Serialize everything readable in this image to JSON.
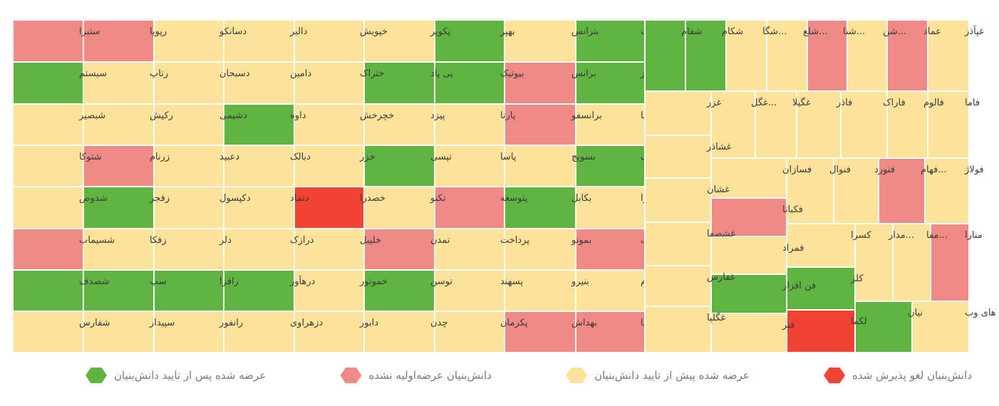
{
  "colors": {
    "green": "#5fb442",
    "pink": "#f08a87",
    "yellow": "#fde29a",
    "red": "#f14234",
    "border": "#ffffff"
  },
  "legend": [
    {
      "label": "عرضه شده پس از تایید دانش‌بنیان",
      "color": "green"
    },
    {
      "label": "دانش‌بنیان عرضه‌اولیه نشده",
      "color": "pink"
    },
    {
      "label": "عرضه شده پیش از تایید دانش‌بنیان",
      "color": "yellow"
    },
    {
      "label": "دانش‌بنیان لغو پذیرش شده",
      "color": "red"
    }
  ],
  "chart_data": {
    "type": "treemap",
    "grid_columns_rtl": [
      [
        "آپ",
        "اپرداز",
        "آریا",
        "اسیاتک",
        "افرا",
        "آواک",
        "بازرگام",
        "بپویا"
      ],
      [
        "بترانس",
        "برانس",
        "برانسفو",
        "بسویچ",
        "بکابل",
        "بموتو",
        "بنیرو",
        "بهداش"
      ],
      [
        "بهپر",
        "بیوتیک",
        "پارتا",
        "پاسا",
        "پتوسعه",
        "پرداخت",
        "پسهند",
        "پکرمان"
      ],
      [
        "پکویر",
        "پی پاد",
        "پیزد",
        "تپسی",
        "تکنو",
        "تمدن",
        "توسن",
        "چدن"
      ],
      [
        "خپویش",
        "ختراک",
        "خچرخش",
        "خزر",
        "خصدرا",
        "خلیبل",
        "خموتور",
        "دابور"
      ],
      [
        "دالبر",
        "دامین",
        "داوه",
        "دبالک",
        "دتماد",
        "درازک",
        "درهآور",
        "دزهراوی"
      ],
      [
        "دسانکو",
        "دسبحان",
        "دشیمی",
        "دعبید",
        "دکپسول",
        "دلر",
        "رافزا",
        "رانفور"
      ],
      [
        "رپویا",
        "رتاپ",
        "رکیش",
        "زرنام",
        "زفجر",
        "زفکا",
        "سپ",
        "سپیدار"
      ],
      [
        "ستبرا",
        "سیستم",
        "شبصیر",
        "شتوکا",
        "شدوص",
        "شسیماب",
        "شصدف",
        "شفارس"
      ]
    ],
    "grid_statuses_rtl": [
      [
        "green",
        "green",
        "yellow",
        "green",
        "yellow",
        "pink",
        "yellow",
        "pink"
      ],
      [
        "yellow",
        "pink",
        "pink",
        "yellow",
        "green",
        "yellow",
        "yellow",
        "pink"
      ],
      [
        "green",
        "green",
        "yellow",
        "yellow",
        "pink",
        "yellow",
        "yellow",
        "yellow"
      ],
      [
        "yellow",
        "green",
        "yellow",
        "green",
        "yellow",
        "pink",
        "green",
        "yellow"
      ],
      [
        "yellow",
        "yellow",
        "yellow",
        "yellow",
        "red",
        "yellow",
        "yellow",
        "yellow"
      ],
      [
        "yellow",
        "yellow",
        "green",
        "yellow",
        "yellow",
        "yellow",
        "green",
        "yellow"
      ],
      [
        "yellow",
        "yellow",
        "yellow",
        "yellow",
        "yellow",
        "yellow",
        "green",
        "yellow"
      ],
      [
        "pink",
        "yellow",
        "yellow",
        "pink",
        "green",
        "yellow",
        "green",
        "yellow"
      ],
      [
        "pink",
        "green",
        "yellow",
        "yellow",
        "yellow",
        "pink",
        "green",
        "yellow"
      ]
    ],
    "right_cells": [
      {
        "label": "غپآذر",
        "status": "yellow"
      },
      {
        "label": "عماد",
        "status": "pink"
      },
      {
        "label": "...شن",
        "status": "yellow"
      },
      {
        "label": "...شنا",
        "status": "pink"
      },
      {
        "label": "...شلع",
        "status": "yellow"
      },
      {
        "label": "...شگا",
        "status": "yellow"
      },
      {
        "label": "شکام",
        "status": "green"
      },
      {
        "label": "شفام",
        "status": "green"
      },
      {
        "label": "فاما",
        "status": "yellow"
      },
      {
        "label": "فالوم",
        "status": "yellow"
      },
      {
        "label": "فاراک",
        "status": "yellow"
      },
      {
        "label": "فاذر",
        "status": "yellow"
      },
      {
        "label": "غگیلا",
        "status": "yellow"
      },
      {
        "label": "...غگل",
        "status": "yellow"
      },
      {
        "label": "غزر",
        "status": "yellow"
      },
      {
        "label": "فولاژ",
        "status": "yellow"
      },
      {
        "label": "...فهام",
        "status": "pink"
      },
      {
        "label": "فنورد",
        "status": "yellow"
      },
      {
        "label": "فنوال",
        "status": "yellow"
      },
      {
        "label": "فسازان",
        "status": "yellow"
      },
      {
        "label": "غشاذر",
        "status": "yellow"
      },
      {
        "label": "غشان",
        "status": "yellow"
      },
      {
        "label": "فکباتا",
        "status": "pink"
      },
      {
        "label": "منارا",
        "status": "pink"
      },
      {
        "label": "...مفا",
        "status": "yellow"
      },
      {
        "label": "...مدار",
        "status": "yellow"
      },
      {
        "label": "کسرا",
        "status": "yellow"
      },
      {
        "label": "فمراد",
        "status": "yellow"
      },
      {
        "label": "غشصفا",
        "status": "yellow"
      },
      {
        "label": "کلر",
        "status": "green"
      },
      {
        "label": "فن افزار",
        "status": "green"
      },
      {
        "label": "غفارس",
        "status": "yellow"
      },
      {
        "label": "های وب",
        "status": "yellow"
      },
      {
        "label": "نیان",
        "status": "green"
      },
      {
        "label": "لکما",
        "status": "red"
      },
      {
        "label": "فنر",
        "status": "yellow"
      },
      {
        "label": "غگلپا",
        "status": "yellow"
      }
    ]
  }
}
